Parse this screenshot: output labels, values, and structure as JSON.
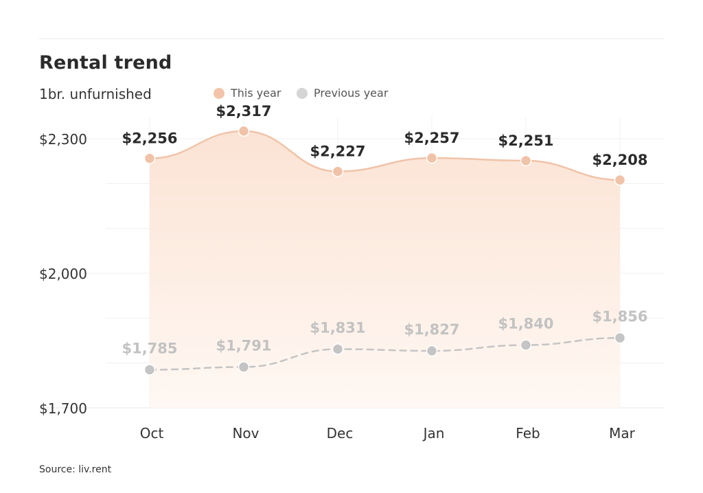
{
  "title": "Rental trend",
  "subtitle": "1br. unfurnished",
  "source": "Source: liv.rent",
  "legend": [
    {
      "label": "This year",
      "color": "#f3c4aa"
    },
    {
      "label": "Previous year",
      "color": "#d5d5d5"
    }
  ],
  "chart_data": {
    "type": "line",
    "categories": [
      "Oct",
      "Nov",
      "Dec",
      "Jan",
      "Feb",
      "Mar"
    ],
    "series": [
      {
        "name": "This year",
        "values": [
          2256,
          2317,
          2227,
          2257,
          2251,
          2208
        ],
        "labels": [
          "$2,256",
          "$2,317",
          "$2,227",
          "$2,257",
          "$2,251",
          "$2,208"
        ],
        "color": "#f0c3a8",
        "style": "solid",
        "area_fill": true
      },
      {
        "name": "Previous year",
        "values": [
          1785,
          1791,
          1831,
          1827,
          1840,
          1856
        ],
        "labels": [
          "$1,785",
          "$1,791",
          "$1,831",
          "$1,827",
          "$1,840",
          "$1,856"
        ],
        "color": "#c4c4c4",
        "style": "dashed",
        "area_fill": false
      }
    ],
    "y_ticks": [
      {
        "value": 1700,
        "label": "$1,700"
      },
      {
        "value": 2000,
        "label": "$2,000"
      },
      {
        "value": 2300,
        "label": "$2,300"
      }
    ],
    "ylim": [
      1700,
      2300
    ],
    "grid": true,
    "legend_position": "top"
  }
}
